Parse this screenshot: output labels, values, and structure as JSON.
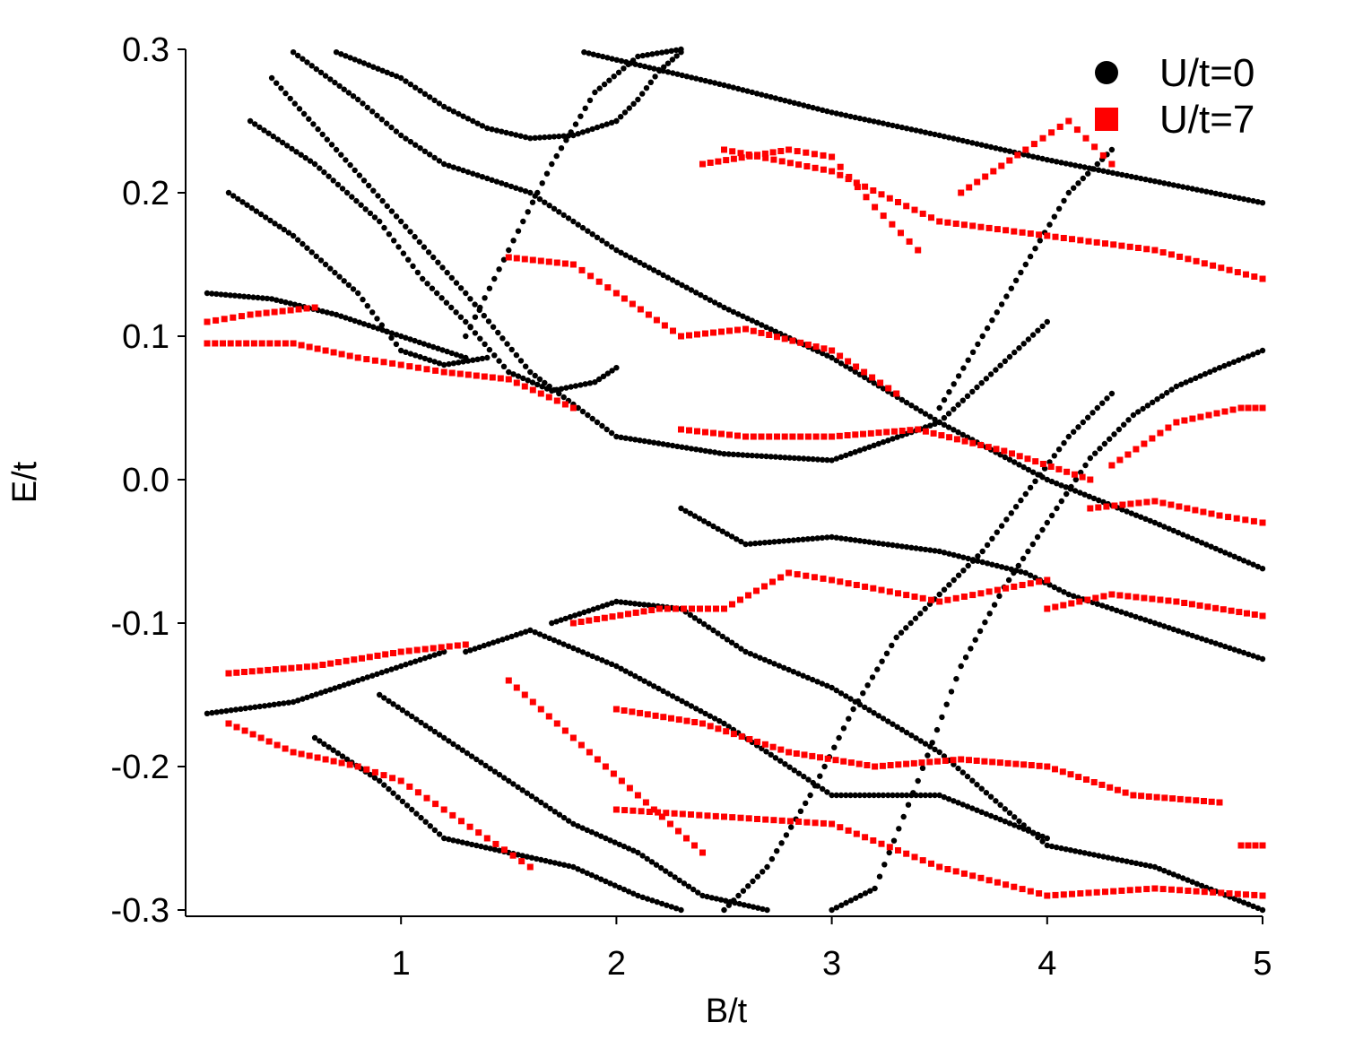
{
  "chart_data": {
    "type": "scatter",
    "xlabel": "B/t",
    "ylabel": "E/t",
    "xlim": [
      0,
      5
    ],
    "ylim": [
      -0.3,
      0.3
    ],
    "xticks": [
      "1",
      "2",
      "3",
      "4",
      "5"
    ],
    "yticks": [
      "0.3",
      "0.2",
      "0.1",
      "0.0",
      "-0.1",
      "-0.2",
      "-0.3"
    ],
    "grid": false,
    "legend_position": "top-right",
    "series": [
      {
        "name": "U/t=0",
        "marker": "circle",
        "color": "#000000",
        "curves": [
          {
            "x": [
              1.85,
              2.5,
              3.0,
              3.5,
              4.0,
              4.5,
              5.0
            ],
            "y": [
              0.298,
              0.275,
              0.256,
              0.24,
              0.223,
              0.208,
              0.193
            ]
          },
          {
            "x": [
              0.7,
              1.0,
              1.2,
              1.4,
              1.6,
              1.8,
              2.0
            ],
            "y": [
              0.298,
              0.28,
              0.26,
              0.245,
              0.238,
              0.24,
              0.25
            ]
          },
          {
            "x": [
              2.0,
              2.1,
              2.2,
              2.3
            ],
            "y": [
              0.25,
              0.265,
              0.285,
              0.298
            ]
          },
          {
            "x": [
              0.5,
              0.8,
              1.0,
              1.2,
              1.4,
              1.6,
              2.0,
              2.5,
              3.0,
              3.5,
              4.0,
              4.5,
              5.0
            ],
            "y": [
              0.298,
              0.265,
              0.24,
              0.22,
              0.21,
              0.2,
              0.16,
              0.12,
              0.085,
              0.04,
              0.0,
              -0.03,
              -0.062
            ]
          },
          {
            "x": [
              0.4,
              0.7,
              1.0,
              1.3,
              1.6,
              2.0,
              2.5,
              3.0,
              3.5,
              4.0
            ],
            "y": [
              0.28,
              0.23,
              0.18,
              0.13,
              0.075,
              0.03,
              0.018,
              0.0135,
              0.04,
              0.11
            ]
          },
          {
            "x": [
              0.3,
              0.6,
              0.9,
              1.1,
              1.3,
              1.5,
              1.7,
              1.9,
              2.0
            ],
            "y": [
              0.25,
              0.22,
              0.18,
              0.14,
              0.11,
              0.075,
              0.062,
              0.068,
              0.078
            ]
          },
          {
            "x": [
              0.2,
              0.5,
              0.8,
              1.0,
              1.2,
              1.4
            ],
            "y": [
              0.2,
              0.17,
              0.13,
              0.09,
              0.08,
              0.085
            ]
          },
          {
            "x": [
              1.3,
              1.5,
              1.7,
              1.9,
              2.1,
              2.3
            ],
            "y": [
              0.1,
              0.16,
              0.22,
              0.27,
              0.295,
              0.3
            ]
          },
          {
            "x": [
              0.1,
              0.4,
              0.7,
              1.0,
              1.3
            ],
            "y": [
              0.13,
              0.126,
              0.115,
              0.1,
              0.085
            ]
          },
          {
            "x": [
              2.3,
              2.6,
              3.0,
              3.5,
              3.9,
              4.1,
              4.5,
              5.0
            ],
            "y": [
              -0.02,
              -0.045,
              -0.04,
              -0.05,
              -0.065,
              -0.08,
              -0.1,
              -0.125
            ]
          },
          {
            "x": [
              1.7,
              2.0,
              2.3,
              2.6,
              3.0,
              3.5,
              4.0,
              4.5,
              5.0
            ],
            "y": [
              -0.1,
              -0.085,
              -0.09,
              -0.12,
              -0.145,
              -0.19,
              -0.255,
              -0.27,
              -0.3
            ]
          },
          {
            "x": [
              1.3,
              1.6,
              2.0,
              2.5,
              3.0,
              3.5,
              4.0
            ],
            "y": [
              -0.12,
              -0.105,
              -0.13,
              -0.17,
              -0.22,
              -0.22,
              -0.25
            ]
          },
          {
            "x": [
              0.1,
              0.5,
              0.8,
              1.0,
              1.2
            ],
            "y": [
              -0.163,
              -0.155,
              -0.14,
              -0.13,
              -0.12
            ]
          },
          {
            "x": [
              2.5,
              2.7,
              2.9,
              3.1,
              3.3,
              3.5,
              3.7,
              3.9,
              4.1,
              4.3
            ],
            "y": [
              -0.3,
              -0.27,
              -0.22,
              -0.16,
              -0.11,
              -0.08,
              -0.05,
              -0.01,
              0.03,
              0.06
            ]
          },
          {
            "x": [
              3.0,
              3.2,
              3.4,
              3.6,
              3.8,
              4.0,
              4.2,
              4.4,
              4.6,
              4.8,
              5.0
            ],
            "y": [
              -0.3,
              -0.285,
              -0.21,
              -0.13,
              -0.075,
              -0.03,
              0.015,
              0.045,
              0.065,
              0.078,
              0.09
            ]
          },
          {
            "x": [
              3.5,
              3.7,
              3.9,
              4.1,
              4.3
            ],
            "y": [
              0.05,
              0.1,
              0.15,
              0.2,
              0.23
            ]
          },
          {
            "x": [
              0.9,
              1.2,
              1.5,
              1.8,
              2.1,
              2.4,
              2.7
            ],
            "y": [
              -0.15,
              -0.18,
              -0.21,
              -0.24,
              -0.26,
              -0.29,
              -0.3
            ]
          },
          {
            "x": [
              0.6,
              0.9,
              1.2,
              1.5,
              1.8,
              2.1,
              2.3
            ],
            "y": [
              -0.18,
              -0.21,
              -0.25,
              -0.26,
              -0.27,
              -0.29,
              -0.3
            ]
          }
        ]
      },
      {
        "name": "U/t=7",
        "marker": "square",
        "color": "#ff0000",
        "curves": [
          {
            "x": [
              2.5,
              3.0,
              3.5,
              4.0,
              4.5,
              5.0
            ],
            "y": [
              0.23,
              0.215,
              0.18,
              0.17,
              0.16,
              0.14
            ]
          },
          {
            "x": [
              2.4,
              2.8,
              3.0,
              3.2,
              3.4
            ],
            "y": [
              0.22,
              0.23,
              0.225,
              0.19,
              0.16
            ]
          },
          {
            "x": [
              0.1,
              0.5,
              0.8,
              1.0,
              1.2,
              1.5,
              1.8
            ],
            "y": [
              0.095,
              0.095,
              0.085,
              0.08,
              0.075,
              0.07,
              0.05
            ]
          },
          {
            "x": [
              0.1,
              0.3,
              0.6
            ],
            "y": [
              0.11,
              0.115,
              0.12
            ]
          },
          {
            "x": [
              1.5,
              1.8,
              2.0,
              2.3,
              2.6,
              3.0,
              3.3
            ],
            "y": [
              0.155,
              0.15,
              0.13,
              0.1,
              0.105,
              0.09,
              0.06
            ]
          },
          {
            "x": [
              2.3,
              2.6,
              3.0,
              3.4,
              3.8,
              4.2
            ],
            "y": [
              0.035,
              0.03,
              0.03,
              0.035,
              0.02,
              0.0
            ]
          },
          {
            "x": [
              3.6,
              3.9,
              4.1,
              4.3
            ],
            "y": [
              0.2,
              0.23,
              0.25,
              0.22
            ]
          },
          {
            "x": [
              0.2,
              0.6,
              1.0,
              1.3
            ],
            "y": [
              -0.135,
              -0.13,
              -0.12,
              -0.115
            ]
          },
          {
            "x": [
              1.8,
              2.2,
              2.5,
              2.8,
              3.0,
              3.5,
              4.0
            ],
            "y": [
              -0.1,
              -0.09,
              -0.09,
              -0.065,
              -0.07,
              -0.085,
              -0.07
            ]
          },
          {
            "x": [
              4.0,
              4.3,
              4.6,
              5.0
            ],
            "y": [
              -0.09,
              -0.08,
              -0.085,
              -0.095
            ]
          },
          {
            "x": [
              4.2,
              4.5,
              4.8,
              5.0
            ],
            "y": [
              -0.02,
              -0.015,
              -0.025,
              -0.03
            ]
          },
          {
            "x": [
              4.3,
              4.6,
              4.9,
              5.0
            ],
            "y": [
              0.01,
              0.04,
              0.05,
              0.05
            ]
          },
          {
            "x": [
              2.0,
              2.4,
              2.8,
              3.2,
              3.6,
              4.0,
              4.4,
              4.8
            ],
            "y": [
              -0.16,
              -0.17,
              -0.19,
              -0.2,
              -0.195,
              -0.2,
              -0.22,
              -0.225
            ]
          },
          {
            "x": [
              2.0,
              2.5,
              3.0,
              3.5,
              4.0,
              4.5,
              5.0
            ],
            "y": [
              -0.23,
              -0.235,
              -0.24,
              -0.27,
              -0.29,
              -0.285,
              -0.29
            ]
          },
          {
            "x": [
              0.2,
              0.5,
              0.8,
              1.0,
              1.2,
              1.4,
              1.6
            ],
            "y": [
              -0.17,
              -0.19,
              -0.2,
              -0.21,
              -0.23,
              -0.25,
              -0.27
            ]
          },
          {
            "x": [
              1.5,
              1.8,
              2.1,
              2.4
            ],
            "y": [
              -0.14,
              -0.18,
              -0.22,
              -0.26
            ]
          },
          {
            "x": [
              4.9,
              5.0
            ],
            "y": [
              -0.255,
              -0.255
            ]
          }
        ]
      }
    ]
  }
}
